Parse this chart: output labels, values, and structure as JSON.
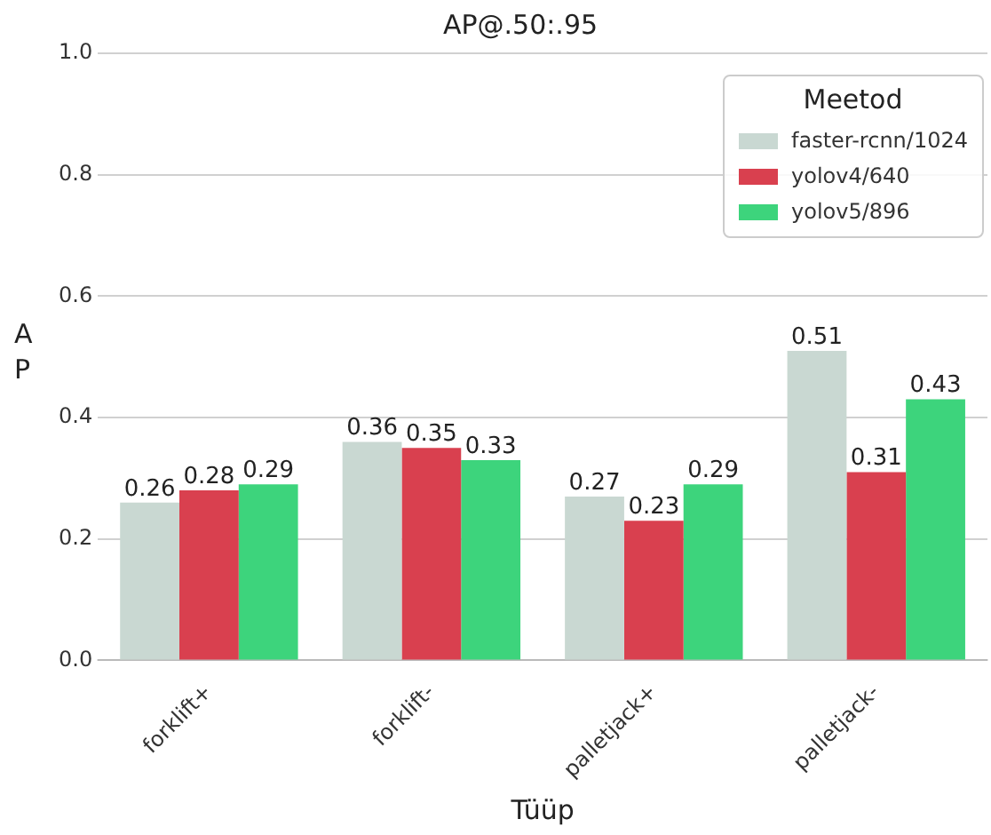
{
  "chart_data": {
    "type": "bar",
    "title": "AP@.50:.95",
    "xlabel": "Tüüp",
    "ylabel": "AP",
    "legend_title": "Meetod",
    "legend": "top right",
    "grid": "y",
    "data_labels": true,
    "categories": [
      "forklift+",
      "forklift-",
      "palletjack+",
      "palletjack-"
    ],
    "ylim": [
      0,
      1
    ],
    "yticks": [
      {
        "value": 0,
        "label": "0.0"
      },
      {
        "value": 0.2,
        "label": "0.2"
      },
      {
        "value": 0.4,
        "label": "0.4"
      },
      {
        "value": 0.6,
        "label": "0.6"
      },
      {
        "value": 0.8,
        "label": "0.8"
      },
      {
        "value": 1,
        "label": "1.0"
      }
    ],
    "series": [
      {
        "name": "faster-rcnn/1024",
        "color": "#c9d8d2",
        "values": [
          0.26,
          0.36,
          0.27,
          0.51
        ]
      },
      {
        "name": "yolov4/640",
        "color": "#d9404f",
        "values": [
          0.28,
          0.35,
          0.23,
          0.31
        ]
      },
      {
        "name": "yolov5/896",
        "color": "#3dd47c",
        "values": [
          0.29,
          0.33,
          0.29,
          0.43
        ]
      }
    ]
  }
}
